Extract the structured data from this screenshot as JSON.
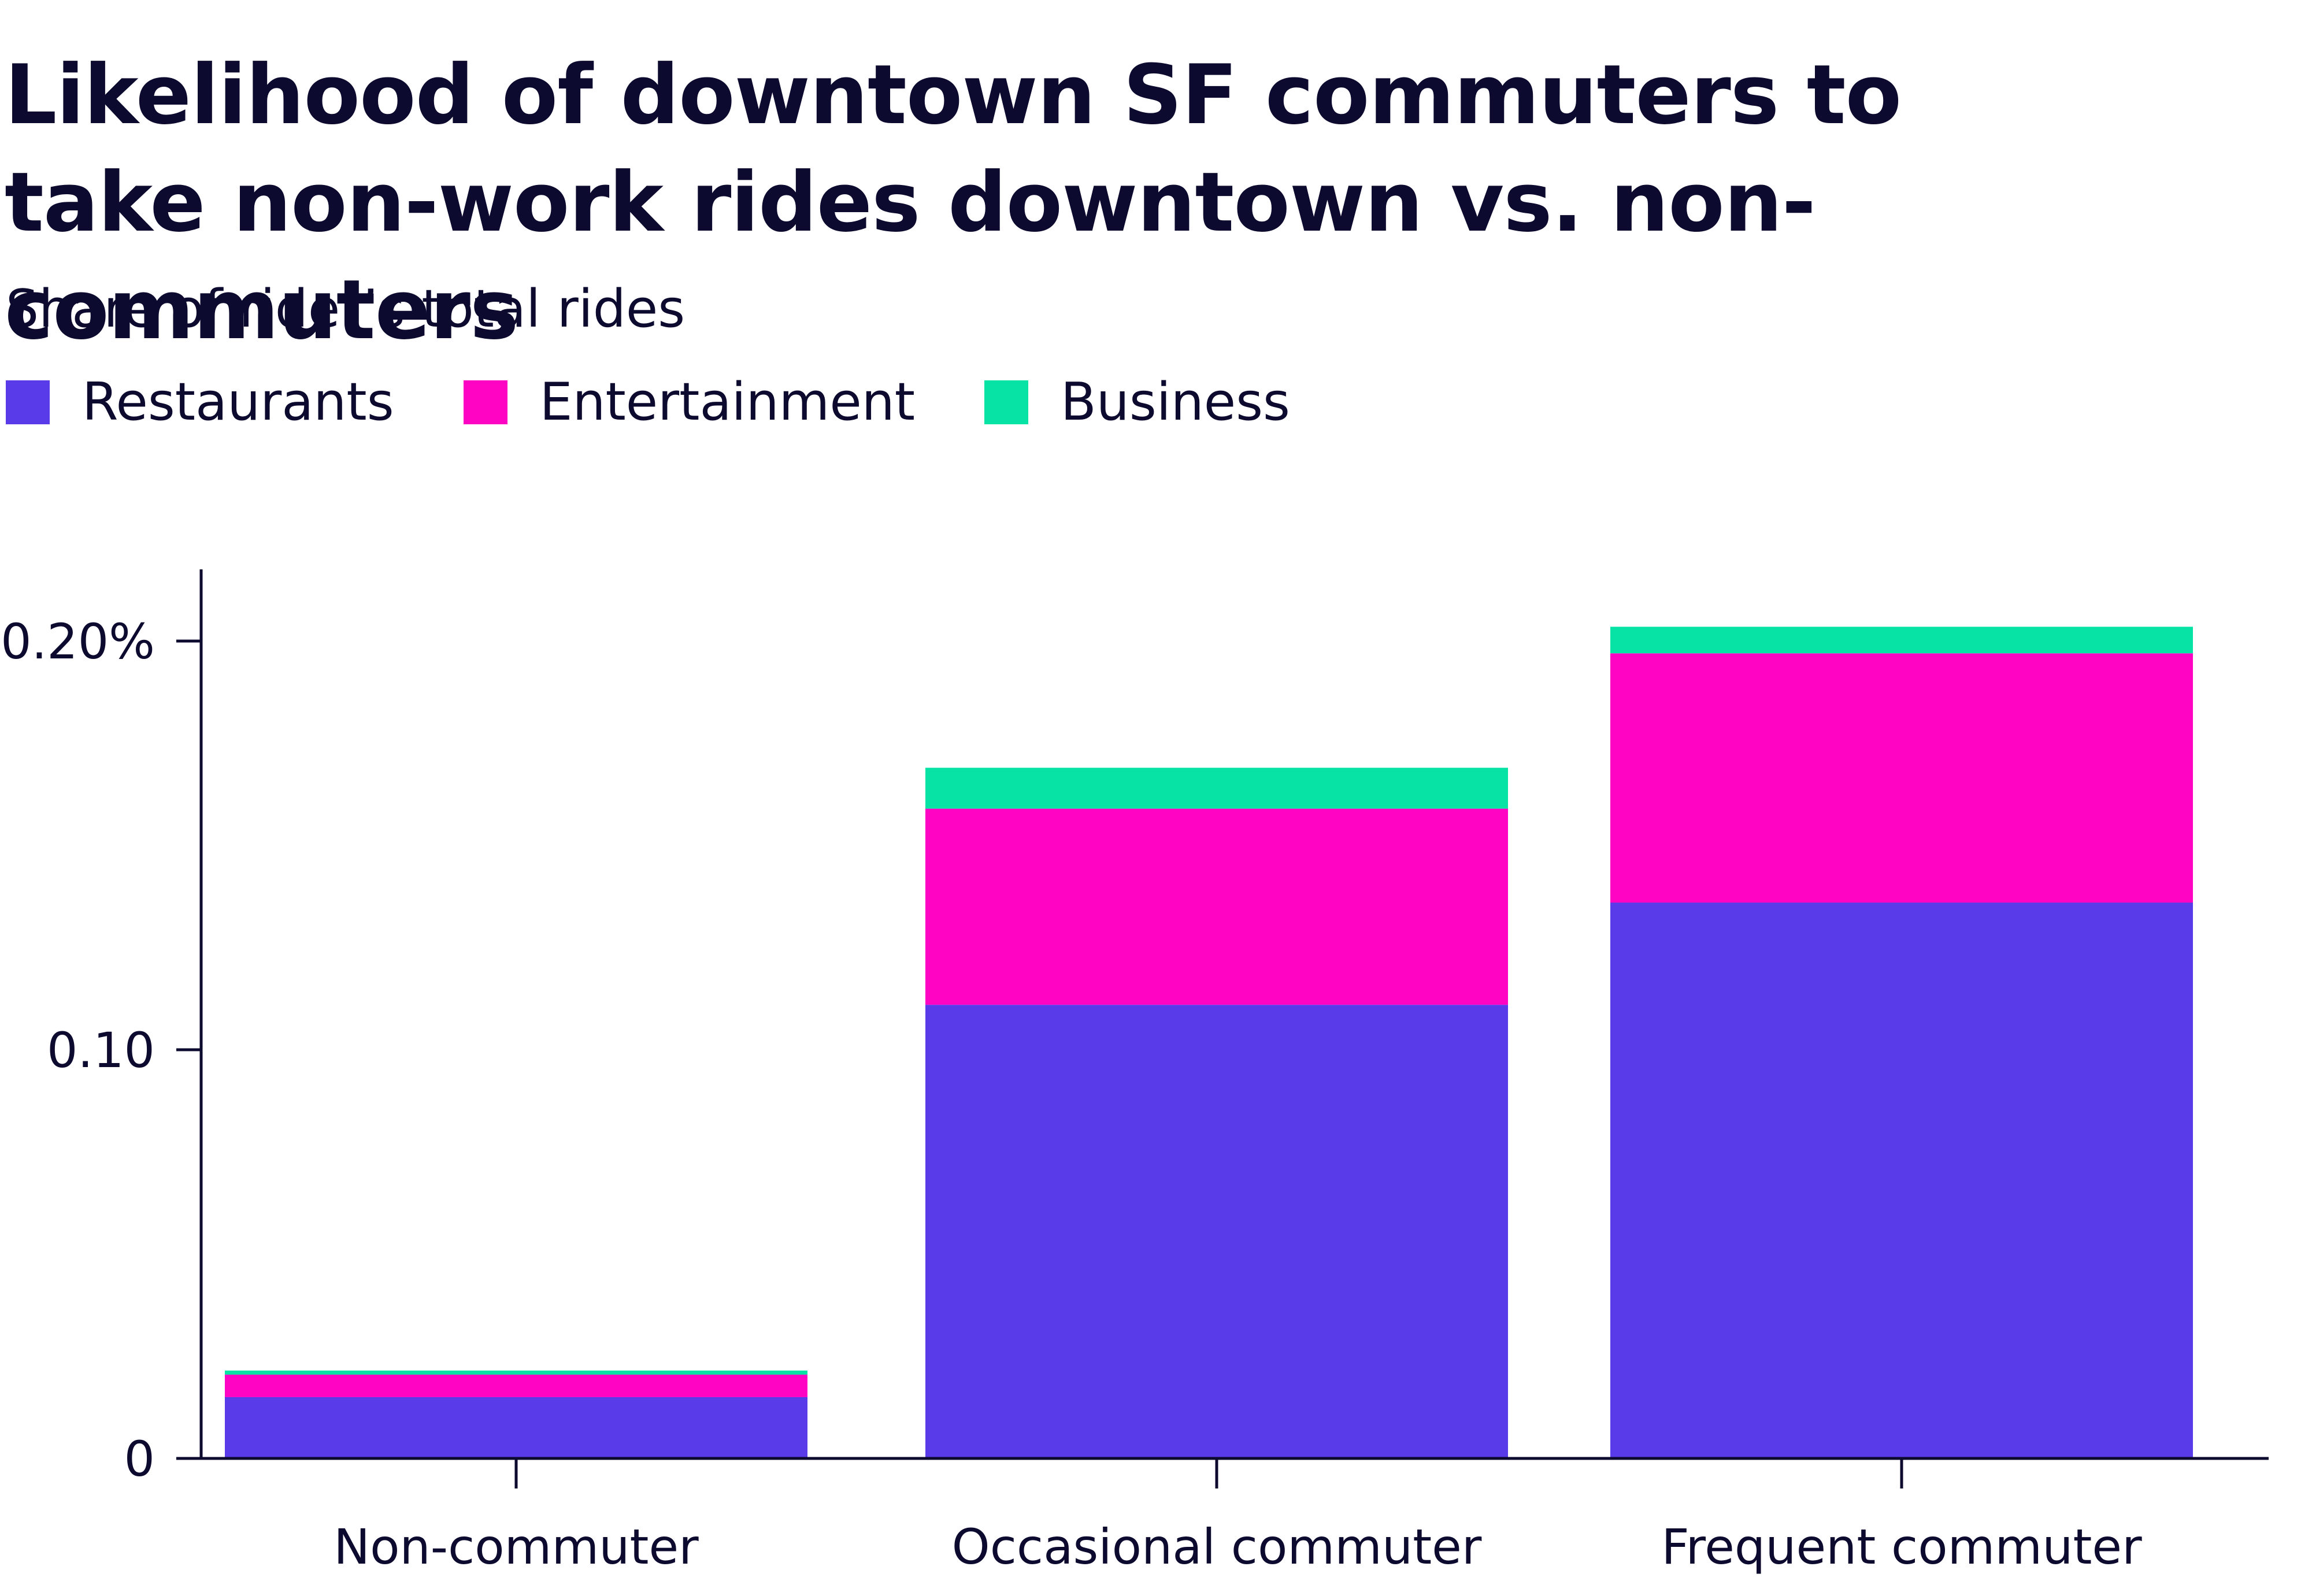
{
  "chart_data": {
    "type": "bar",
    "stacked": true,
    "title": "Likelihood of downtown SF commuters to take non-work rides downtown vs. non-commuters",
    "subtitle": "Share of rider’s total rides",
    "categories": [
      "Non-commuter",
      "Occasional commuter",
      "Frequent commuter"
    ],
    "series": [
      {
        "name": "Restaurants",
        "color": "#5a3bea",
        "values": [
          0.015,
          0.111,
          0.136
        ]
      },
      {
        "name": "Entertainment",
        "color": "#ff05c3",
        "values": [
          0.0055,
          0.048,
          0.061
        ]
      },
      {
        "name": "Business",
        "color": "#07e3a5",
        "values": [
          0.001,
          0.01,
          0.0065
        ]
      }
    ],
    "yticks": [
      {
        "value": 0,
        "label": "0"
      },
      {
        "value": 0.1,
        "label": "0.10"
      },
      {
        "value": 0.2,
        "label": "0.20%"
      }
    ],
    "ylim": [
      0,
      0.2175
    ],
    "xlabel": "",
    "ylabel": "",
    "legend_position": "top-left",
    "grid": false
  }
}
